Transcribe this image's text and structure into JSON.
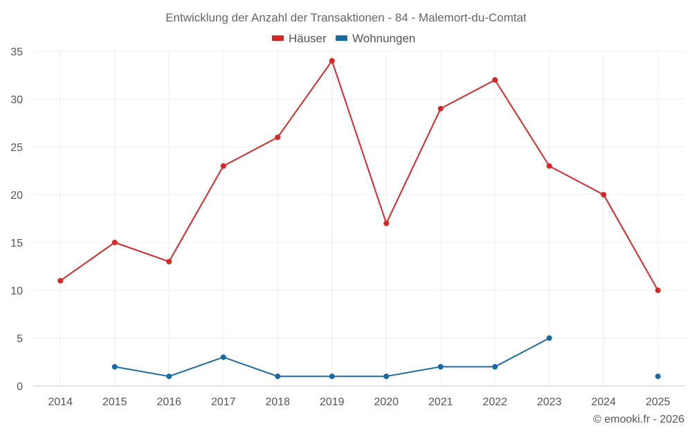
{
  "chart_data": {
    "type": "line",
    "title": "Entwicklung der Anzahl der Transaktionen - 84 - Malemort-du-Comtat",
    "categories": [
      "2014",
      "2015",
      "2016",
      "2017",
      "2018",
      "2019",
      "2020",
      "2021",
      "2022",
      "2023",
      "2024",
      "2025"
    ],
    "ylim": [
      0,
      35
    ],
    "yticks": [
      0,
      5,
      10,
      15,
      20,
      25,
      30,
      35
    ],
    "grid": true,
    "legend_position": "top-center",
    "series": [
      {
        "name": "Häuser",
        "color": "#d62728",
        "values": [
          11,
          15,
          13,
          23,
          26,
          34,
          17,
          29,
          32,
          23,
          20,
          10
        ]
      },
      {
        "name": "Wohnungen",
        "color": "#1a6aa0",
        "values": [
          null,
          2,
          1,
          3,
          1,
          1,
          1,
          2,
          2,
          5,
          null,
          1
        ]
      }
    ]
  },
  "credit": "© emooki.fr - 2026"
}
